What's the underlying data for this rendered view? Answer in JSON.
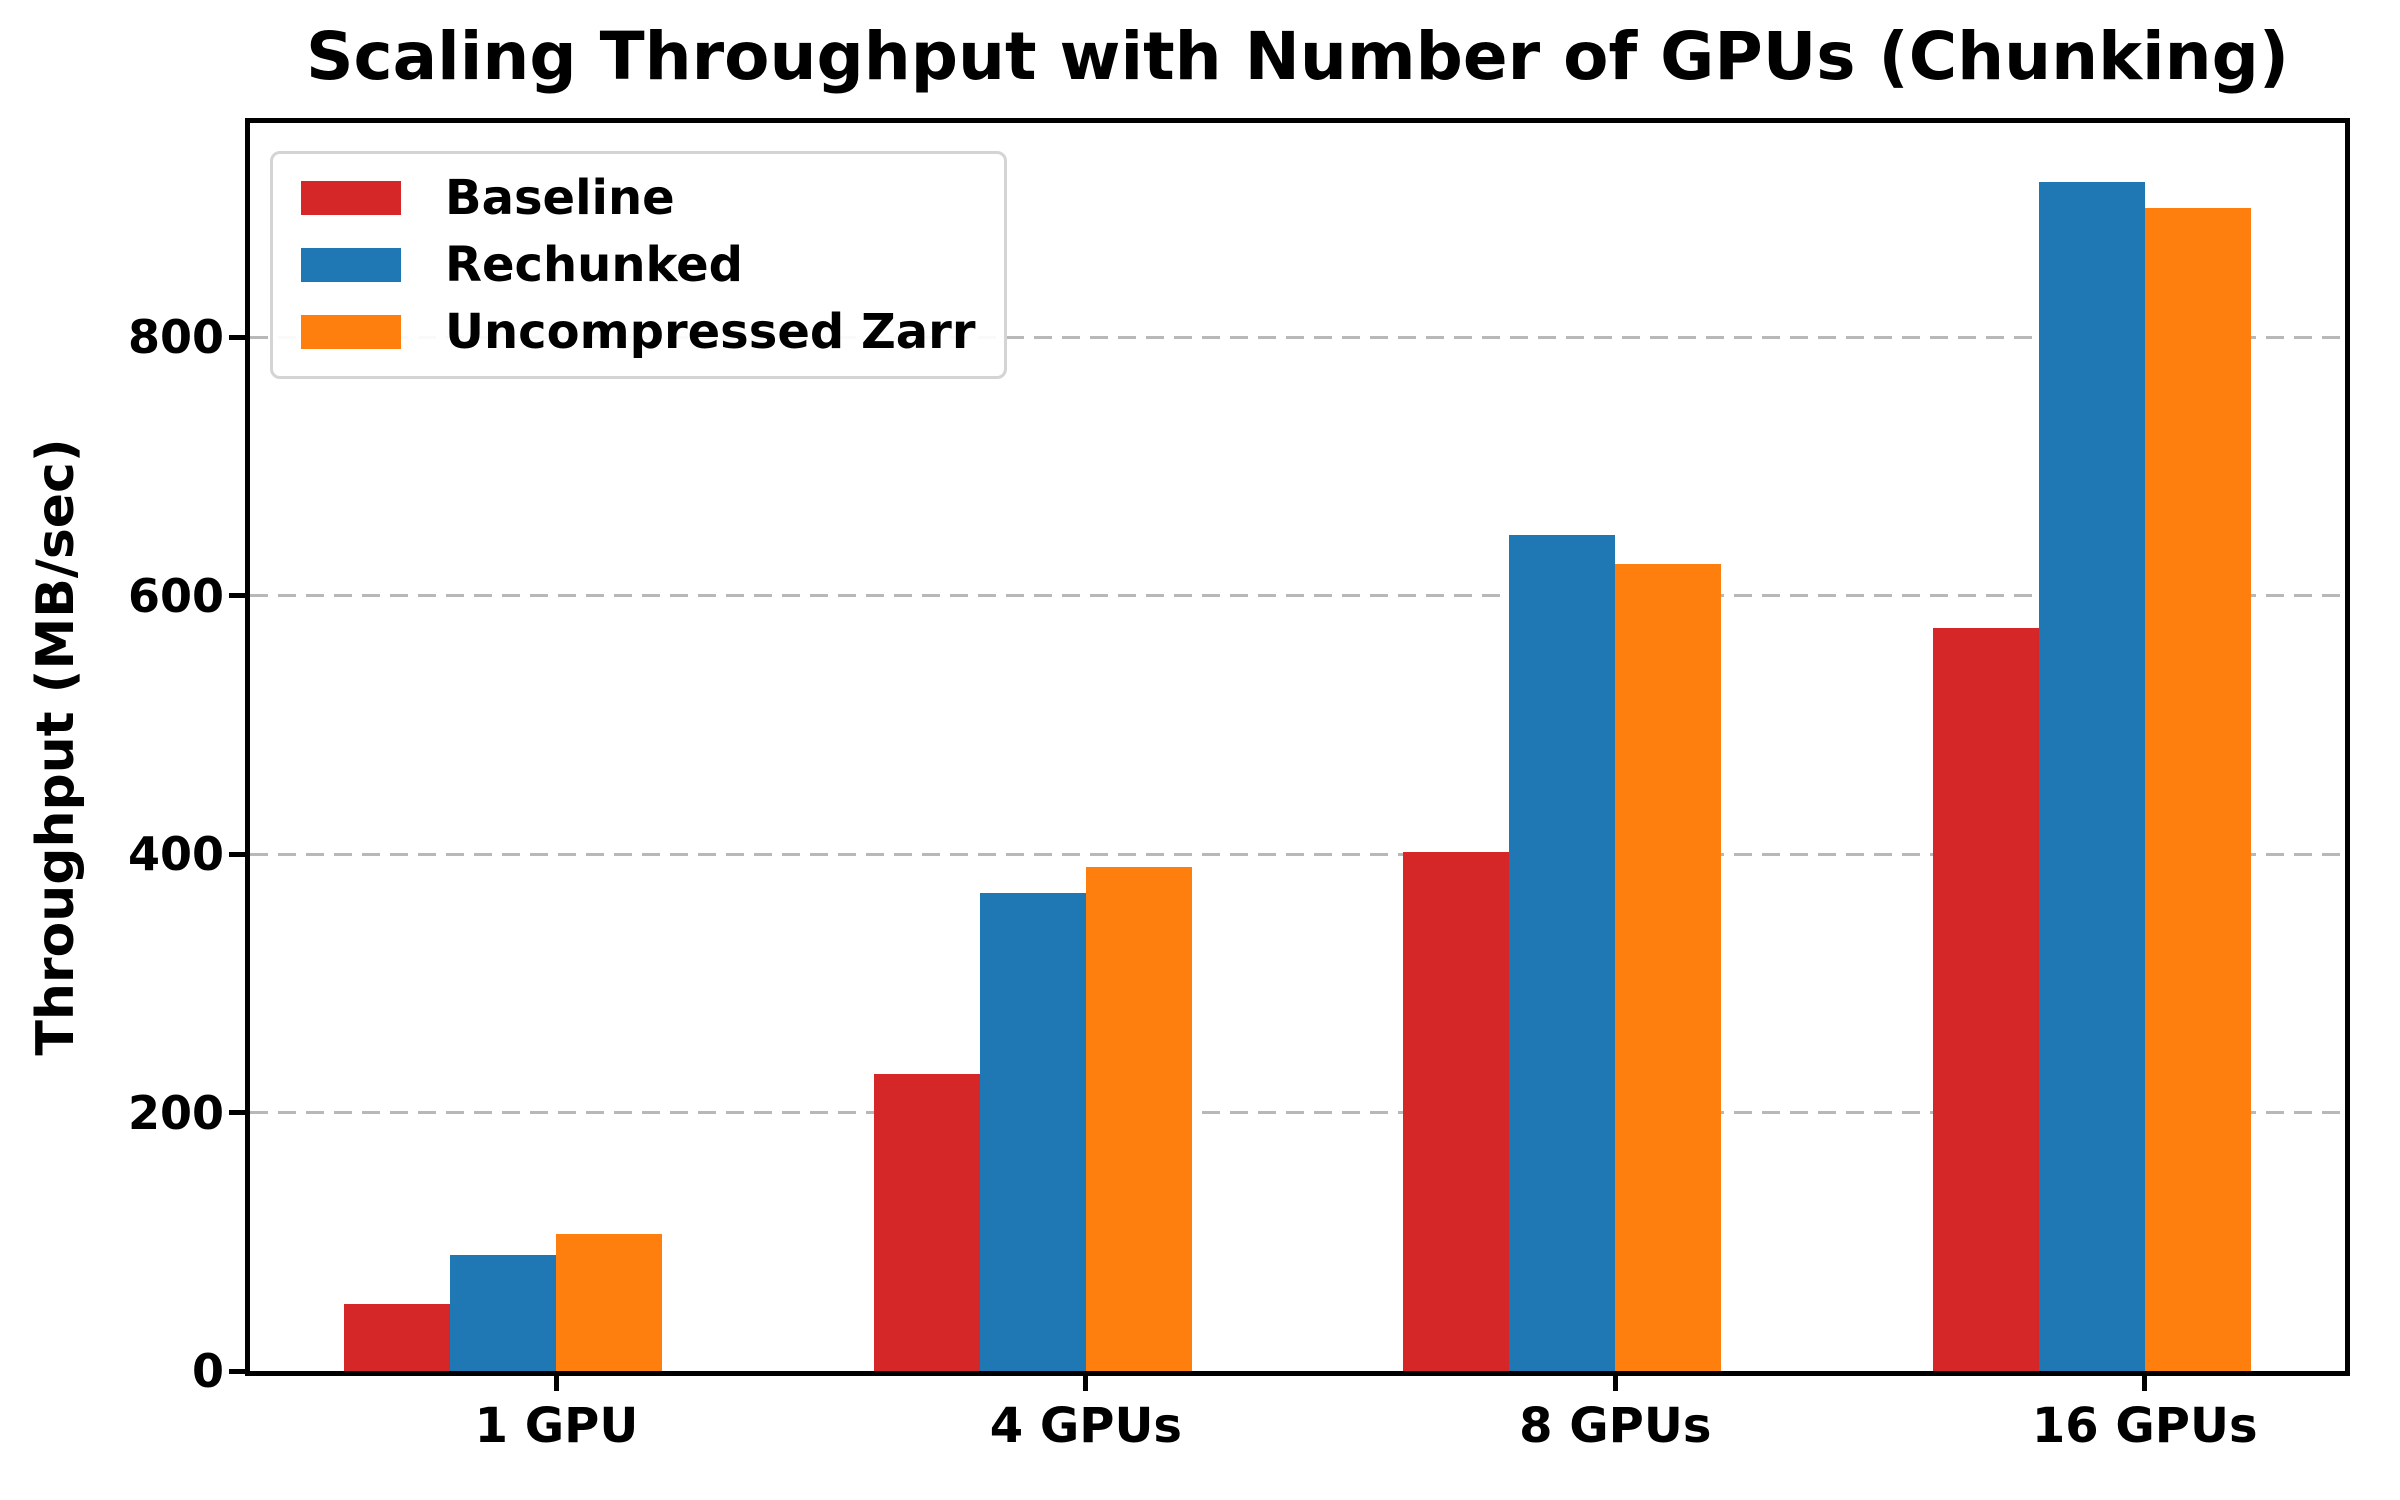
{
  "chart_data": {
    "type": "bar",
    "title": "Scaling Throughput with Number of GPUs (Chunking)",
    "ylabel": "Throughput (MB/sec)",
    "xlabel": "",
    "categories": [
      "1 GPU",
      "4 GPUs",
      "8 GPUs",
      "16 GPUs"
    ],
    "series": [
      {
        "name": "Baseline",
        "color": "#d62728",
        "values": [
          52,
          230,
          402,
          575
        ]
      },
      {
        "name": "Rechunked",
        "color": "#1f77b4",
        "values": [
          90,
          370,
          647,
          920
        ]
      },
      {
        "name": "Uncompressed Zarr",
        "color": "#ff7f0e",
        "values": [
          106,
          390,
          625,
          900
        ]
      }
    ],
    "yticks": [
      0,
      200,
      400,
      600,
      800
    ],
    "ylim": [
      0,
      966
    ],
    "grid": {
      "axis": "y",
      "style": "dashed",
      "color": "#b8b8b8"
    },
    "legend": {
      "position": "upper-left"
    },
    "axis_color": "#000000",
    "background_color": "#ffffff"
  }
}
